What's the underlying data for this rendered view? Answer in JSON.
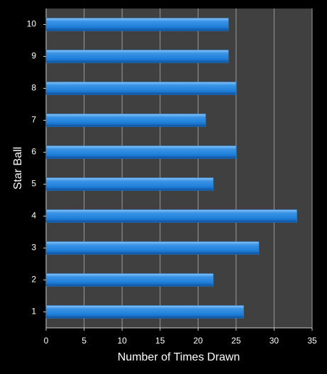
{
  "chart_data": {
    "type": "bar",
    "orientation": "horizontal",
    "x_label": "Number of Times Drawn",
    "y_label": "Star Ball",
    "categories": [
      "1",
      "2",
      "3",
      "4",
      "5",
      "6",
      "7",
      "8",
      "9",
      "10"
    ],
    "values": [
      26,
      22,
      28,
      33,
      22,
      25,
      21,
      25,
      24,
      24
    ],
    "color": "#1f7fd9",
    "xlim": [
      0,
      35
    ],
    "xticks": [
      0,
      5,
      10,
      15,
      20,
      25,
      30,
      35
    ],
    "grid": true
  }
}
